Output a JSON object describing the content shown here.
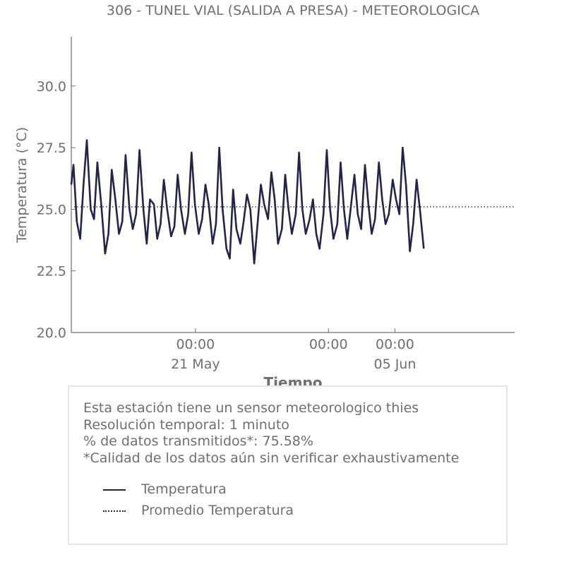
{
  "chart_data": {
    "type": "line",
    "title": "306 - TUNEL VIAL (SALIDA A PRESA) - METEOROLOGICA",
    "xlabel": "Tiempo",
    "ylabel": "Temperatura (°C)",
    "ylim": [
      20.0,
      32.0
    ],
    "xlim": [
      "2024-05-11T16:00",
      "2024-06-14T00:00"
    ],
    "yticks": [
      "20.0",
      "22.5",
      "25.0",
      "27.5",
      "30.0"
    ],
    "xticks": [
      {
        "time": "2024-05-21T00:00",
        "line1": "00:00",
        "line2": "21 May"
      },
      {
        "time": "2024-05-31T00:00",
        "line1": "00:00",
        "line2": ""
      },
      {
        "time": "2024-06-05T00:00",
        "line1": "00:00",
        "line2": "05 Jun"
      }
    ],
    "grid": false,
    "series": [
      {
        "name": "Temperatura",
        "color": "#23244a",
        "style": "solid",
        "points": [
          [
            "2024-05-11T16:00",
            26.0
          ],
          [
            "2024-05-11T20:00",
            26.8
          ],
          [
            "2024-05-12T02:00",
            24.5
          ],
          [
            "2024-05-12T08:00",
            23.8
          ],
          [
            "2024-05-12T14:00",
            26.0
          ],
          [
            "2024-05-12T20:00",
            27.8
          ],
          [
            "2024-05-13T03:00",
            25.0
          ],
          [
            "2024-05-13T09:00",
            24.6
          ],
          [
            "2024-05-13T15:00",
            26.9
          ],
          [
            "2024-05-13T22:00",
            25.2
          ],
          [
            "2024-05-14T05:00",
            23.2
          ],
          [
            "2024-05-14T11:00",
            24.0
          ],
          [
            "2024-05-14T17:00",
            26.6
          ],
          [
            "2024-05-14T23:00",
            25.5
          ],
          [
            "2024-05-15T06:00",
            24.0
          ],
          [
            "2024-05-15T12:00",
            24.5
          ],
          [
            "2024-05-15T18:00",
            27.2
          ],
          [
            "2024-05-16T01:00",
            25.0
          ],
          [
            "2024-05-16T07:00",
            24.2
          ],
          [
            "2024-05-16T13:00",
            24.8
          ],
          [
            "2024-05-16T19:00",
            27.4
          ],
          [
            "2024-05-17T02:00",
            25.0
          ],
          [
            "2024-05-17T08:00",
            23.6
          ],
          [
            "2024-05-17T14:00",
            25.4
          ],
          [
            "2024-05-17T21:00",
            25.2
          ],
          [
            "2024-05-18T03:00",
            23.8
          ],
          [
            "2024-05-18T09:00",
            24.4
          ],
          [
            "2024-05-18T15:00",
            26.2
          ],
          [
            "2024-05-18T21:00",
            25.0
          ],
          [
            "2024-05-19T04:00",
            23.9
          ],
          [
            "2024-05-19T10:00",
            24.3
          ],
          [
            "2024-05-19T16:00",
            26.4
          ],
          [
            "2024-05-19T22:00",
            25.0
          ],
          [
            "2024-05-20T05:00",
            24.0
          ],
          [
            "2024-05-20T11:00",
            24.8
          ],
          [
            "2024-05-20T17:00",
            27.3
          ],
          [
            "2024-05-20T23:00",
            25.2
          ],
          [
            "2024-05-21T06:00",
            24.0
          ],
          [
            "2024-05-21T12:00",
            24.6
          ],
          [
            "2024-05-21T18:00",
            26.0
          ],
          [
            "2024-05-22T00:00",
            25.2
          ],
          [
            "2024-05-22T07:00",
            23.6
          ],
          [
            "2024-05-22T13:00",
            24.4
          ],
          [
            "2024-05-22T19:00",
            27.5
          ],
          [
            "2024-05-23T01:00",
            25.0
          ],
          [
            "2024-05-23T08:00",
            23.4
          ],
          [
            "2024-05-23T14:00",
            23.0
          ],
          [
            "2024-05-23T20:00",
            25.8
          ],
          [
            "2024-05-24T02:00",
            24.2
          ],
          [
            "2024-05-24T09:00",
            23.6
          ],
          [
            "2024-05-24T15:00",
            24.5
          ],
          [
            "2024-05-24T21:00",
            25.6
          ],
          [
            "2024-05-25T03:00",
            25.0
          ],
          [
            "2024-05-25T10:00",
            22.8
          ],
          [
            "2024-05-25T16:00",
            24.4
          ],
          [
            "2024-05-25T22:00",
            26.0
          ],
          [
            "2024-05-26T04:00",
            25.2
          ],
          [
            "2024-05-26T11:00",
            24.6
          ],
          [
            "2024-05-26T17:00",
            26.5
          ],
          [
            "2024-05-26T23:00",
            25.4
          ],
          [
            "2024-05-27T05:00",
            23.6
          ],
          [
            "2024-05-27T12:00",
            24.2
          ],
          [
            "2024-05-27T18:00",
            26.4
          ],
          [
            "2024-05-28T00:00",
            25.0
          ],
          [
            "2024-05-28T06:00",
            24.0
          ],
          [
            "2024-05-28T13:00",
            24.8
          ],
          [
            "2024-05-28T19:00",
            27.3
          ],
          [
            "2024-05-29T01:00",
            25.0
          ],
          [
            "2024-05-29T07:00",
            24.0
          ],
          [
            "2024-05-29T14:00",
            24.6
          ],
          [
            "2024-05-29T20:00",
            25.4
          ],
          [
            "2024-05-30T02:00",
            24.0
          ],
          [
            "2024-05-30T08:00",
            23.4
          ],
          [
            "2024-05-30T15:00",
            24.8
          ],
          [
            "2024-05-30T21:00",
            27.4
          ],
          [
            "2024-05-31T03:00",
            25.0
          ],
          [
            "2024-05-31T09:00",
            23.8
          ],
          [
            "2024-05-31T16:00",
            24.4
          ],
          [
            "2024-05-31T22:00",
            26.9
          ],
          [
            "2024-06-01T04:00",
            25.0
          ],
          [
            "2024-06-01T10:00",
            23.8
          ],
          [
            "2024-06-01T17:00",
            25.2
          ],
          [
            "2024-06-01T23:00",
            26.4
          ],
          [
            "2024-06-02T05:00",
            24.8
          ],
          [
            "2024-06-02T11:00",
            24.2
          ],
          [
            "2024-06-02T18:00",
            26.8
          ],
          [
            "2024-06-03T00:00",
            25.2
          ],
          [
            "2024-06-03T06:00",
            24.0
          ],
          [
            "2024-06-03T12:00",
            24.6
          ],
          [
            "2024-06-03T19:00",
            26.9
          ],
          [
            "2024-06-04T01:00",
            25.4
          ],
          [
            "2024-06-04T07:00",
            24.4
          ],
          [
            "2024-06-04T13:00",
            24.8
          ],
          [
            "2024-06-04T20:00",
            26.2
          ],
          [
            "2024-06-05T02:00",
            25.4
          ],
          [
            "2024-06-05T08:00",
            24.8
          ],
          [
            "2024-06-05T14:00",
            27.5
          ],
          [
            "2024-06-05T20:00",
            26.0
          ],
          [
            "2024-06-06T03:00",
            23.3
          ],
          [
            "2024-06-06T09:00",
            24.4
          ],
          [
            "2024-06-06T15:00",
            26.2
          ],
          [
            "2024-06-06T21:00",
            25.0
          ],
          [
            "2024-06-07T04:00",
            23.4
          ]
        ]
      },
      {
        "name": "Promedio Temperatura",
        "color": "#23244a",
        "style": "dotted",
        "value": 25.1
      }
    ]
  },
  "info": {
    "lines": [
      "Esta estación tiene un sensor meteorologico thies",
      "Resolución temporal: 1 minuto",
      "% de datos transmitidos*: 75.58%",
      "*Calidad de los datos aún sin verificar exhaustivamente"
    ]
  },
  "legend": {
    "items": [
      {
        "label": "Temperatura",
        "style": "solid",
        "color": "#23244a"
      },
      {
        "label": "Promedio Temperatura",
        "style": "dotted",
        "color": "#23244a"
      }
    ]
  }
}
